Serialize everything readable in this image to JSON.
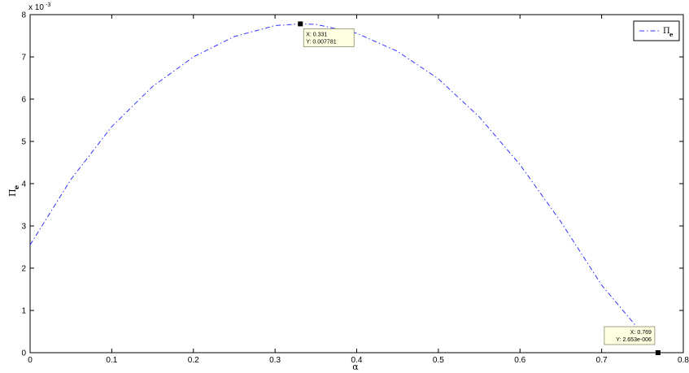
{
  "chart_data": {
    "type": "line",
    "title": "",
    "xlabel": "α",
    "ylabel": "Π",
    "ylabel_subscript": "e",
    "xlim": [
      0,
      0.8
    ],
    "ylim": [
      0,
      8
    ],
    "y_exponent_label": "x 10",
    "y_exponent": "-3",
    "xticks": [
      "0",
      "0.1",
      "0.2",
      "0.3",
      "0.4",
      "0.5",
      "0.6",
      "0.7",
      "0.8"
    ],
    "yticks": [
      "0",
      "1",
      "2",
      "3",
      "4",
      "5",
      "6",
      "7",
      "8"
    ],
    "grid": false,
    "legend_position": "top-right",
    "series": [
      {
        "name": "Π",
        "name_subscript": "e",
        "color": "#3333ff",
        "line_style": "dash-dot",
        "x": [
          0,
          0.05,
          0.1,
          0.15,
          0.2,
          0.25,
          0.3,
          0.331,
          0.35,
          0.4,
          0.45,
          0.5,
          0.55,
          0.6,
          0.65,
          0.7,
          0.75
        ],
        "y": [
          2.55,
          4.1,
          5.35,
          6.3,
          7.0,
          7.48,
          7.74,
          7.781,
          7.77,
          7.56,
          7.13,
          6.48,
          5.58,
          4.45,
          3.1,
          1.6,
          0.45
        ]
      }
    ],
    "datatips": [
      {
        "x": 0.331,
        "y": 7.781,
        "line1": "X: 0.331",
        "line2": "Y: 0.007781"
      },
      {
        "x": 0.769,
        "y": 0.0,
        "line1": "X: 0.769",
        "line2": "Y: 2.653e-006"
      }
    ]
  }
}
